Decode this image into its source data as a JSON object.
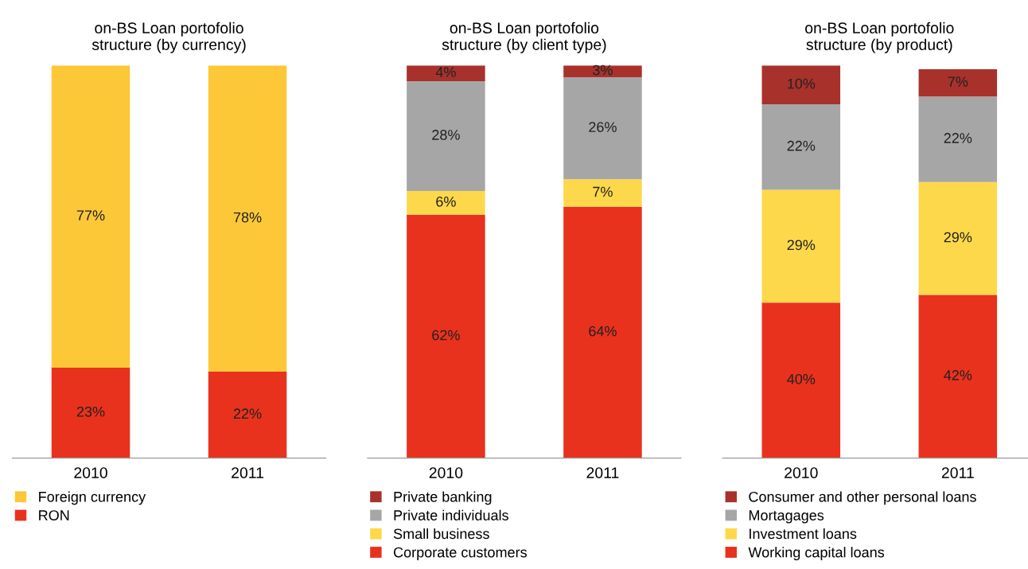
{
  "chart_data": [
    {
      "type": "bar",
      "title": "on-BS Loan portofolio\nstructure (by currency)",
      "categories": [
        "2010",
        "2011"
      ],
      "stacked": true,
      "tick_labels": "x",
      "legend": "bottom",
      "series": [
        {
          "name": "RON",
          "color": "#e8321e",
          "values": [
            23,
            22
          ],
          "value_labels": [
            "23%",
            "22%"
          ]
        },
        {
          "name": "Foreign currency",
          "color": "#fcc838",
          "values": [
            77,
            78
          ],
          "value_labels": [
            "77%",
            "78%"
          ]
        }
      ]
    },
    {
      "type": "bar",
      "title": "on-BS Loan portofolio\nstructure (by client type)",
      "categories": [
        "2010",
        "2011"
      ],
      "stacked": true,
      "tick_labels": "x",
      "legend": "bottom",
      "series": [
        {
          "name": "Corporate customers",
          "color": "#e8321e",
          "values": [
            62,
            64
          ],
          "value_labels": [
            "62%",
            "64%"
          ]
        },
        {
          "name": "Small business",
          "color": "#fdd84a",
          "values": [
            6,
            7
          ],
          "value_labels": [
            "6%",
            "7%"
          ]
        },
        {
          "name": "Private individuals",
          "color": "#a6a6a6",
          "values": [
            28,
            26
          ],
          "value_labels": [
            "28%",
            "26%"
          ]
        },
        {
          "name": "Private banking",
          "color": "#a8312c",
          "values": [
            4,
            3
          ],
          "value_labels": [
            "4%",
            "3%"
          ]
        }
      ]
    },
    {
      "type": "bar",
      "title": "on-BS Loan portofolio\nstructure (by product)",
      "categories": [
        "2010",
        "2011"
      ],
      "stacked": true,
      "tick_labels": "x",
      "legend": "bottom",
      "series": [
        {
          "name": "Working capital loans",
          "color": "#e8321e",
          "values": [
            40,
            42
          ],
          "value_labels": [
            "40%",
            "42%"
          ]
        },
        {
          "name": "Investment loans",
          "color": "#fdd84a",
          "values": [
            29,
            29
          ],
          "value_labels": [
            "29%",
            "29%"
          ]
        },
        {
          "name": "Mortagages",
          "color": "#a6a6a6",
          "values": [
            22,
            22
          ],
          "value_labels": [
            "22%",
            "22%"
          ]
        },
        {
          "name": "Consumer and other personal loans",
          "color": "#a8312c",
          "values": [
            10,
            7
          ],
          "value_labels": [
            "10%",
            "7%"
          ]
        }
      ]
    }
  ]
}
